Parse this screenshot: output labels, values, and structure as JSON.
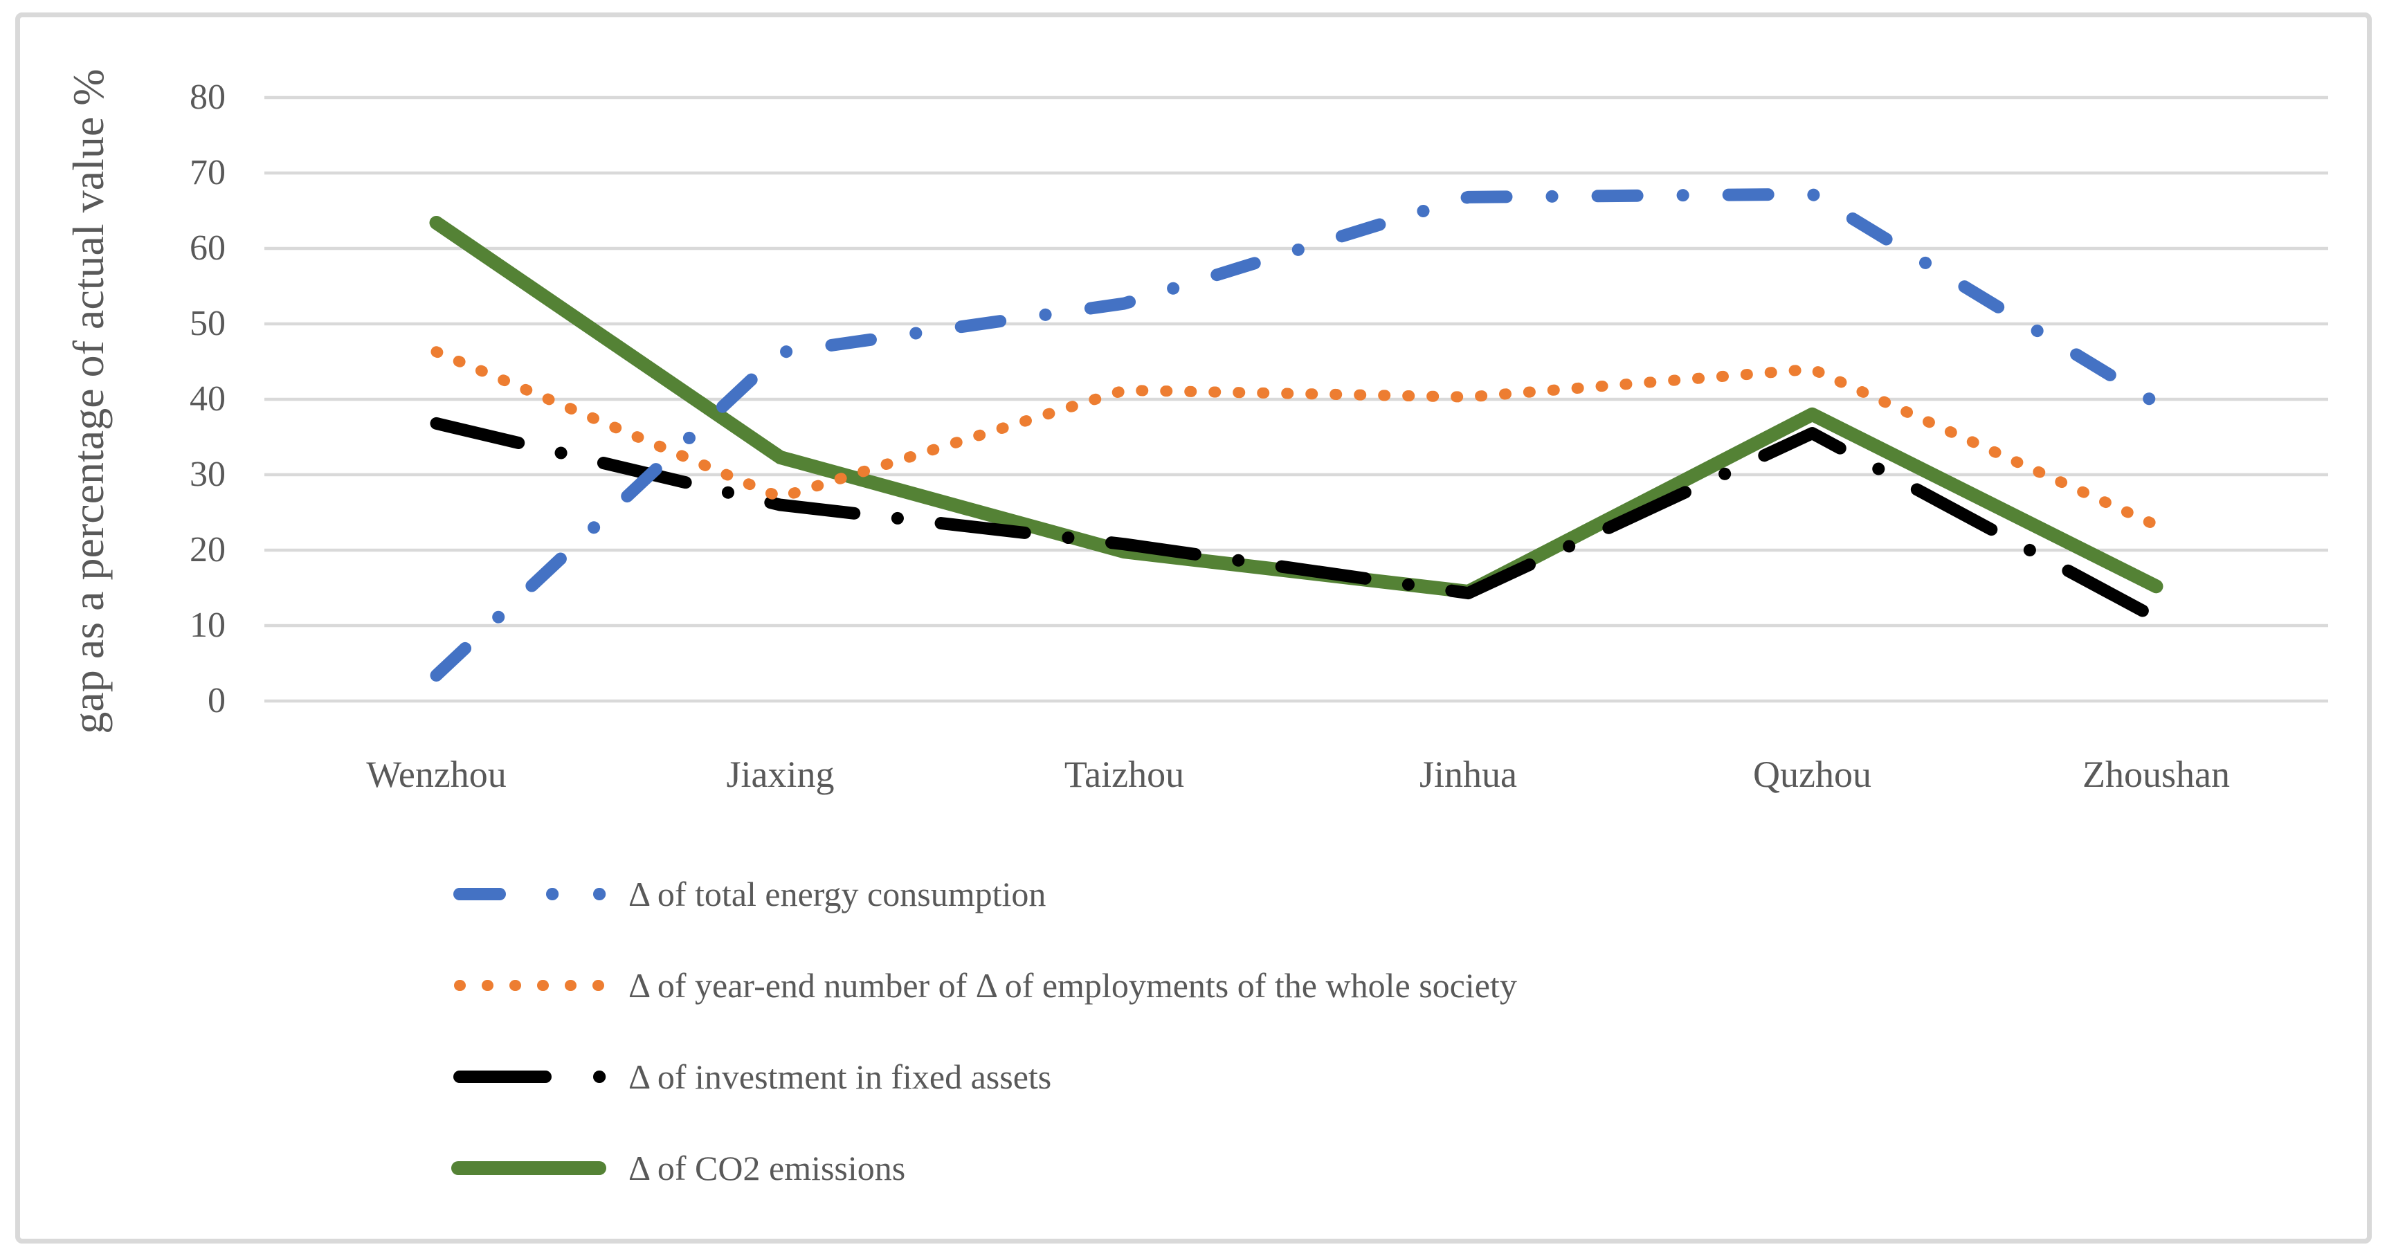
{
  "figure": {
    "background_color": "#ffffff",
    "border_color": "#d9d9d9",
    "text_color": "#595959",
    "gridline_color": "#d9d9d9"
  },
  "chart_data": {
    "type": "line",
    "title": "",
    "xlabel": "",
    "ylabel": "gap as a percentage of actual value %",
    "categories": [
      "Wenzhou",
      "Jiaxing",
      "Taizhou",
      "Jinhua",
      "Quzhou",
      "Zhoushan"
    ],
    "ylim": [
      0,
      80
    ],
    "yticks": [
      0,
      10,
      20,
      30,
      40,
      50,
      60,
      70,
      80
    ],
    "grid": "horizontal",
    "legend_position": "bottom-left",
    "series": [
      {
        "name": "Δ of total energy consumption",
        "color": "#4472C4",
        "line_style": "dash-dot",
        "values": [
          3.4,
          46.2,
          52.7,
          66.8,
          67.2,
          39.5
        ]
      },
      {
        "name": "Δ of year-end number of Δ of employments of the whole society",
        "color": "#ED7D31",
        "line_style": "dotted",
        "values": [
          46.3,
          27.0,
          41.2,
          40.3,
          44.0,
          23.3
        ]
      },
      {
        "name": "Δ of investment in fixed assets",
        "color": "#000000",
        "line_style": "long-dash-dot",
        "values": [
          36.8,
          26.0,
          20.8,
          14.3,
          35.5,
          11.0
        ]
      },
      {
        "name": "Δ of CO2 emissions",
        "color": "#548235",
        "line_style": "solid",
        "values": [
          63.4,
          32.3,
          19.8,
          14.5,
          38.0,
          15.2
        ]
      }
    ]
  }
}
